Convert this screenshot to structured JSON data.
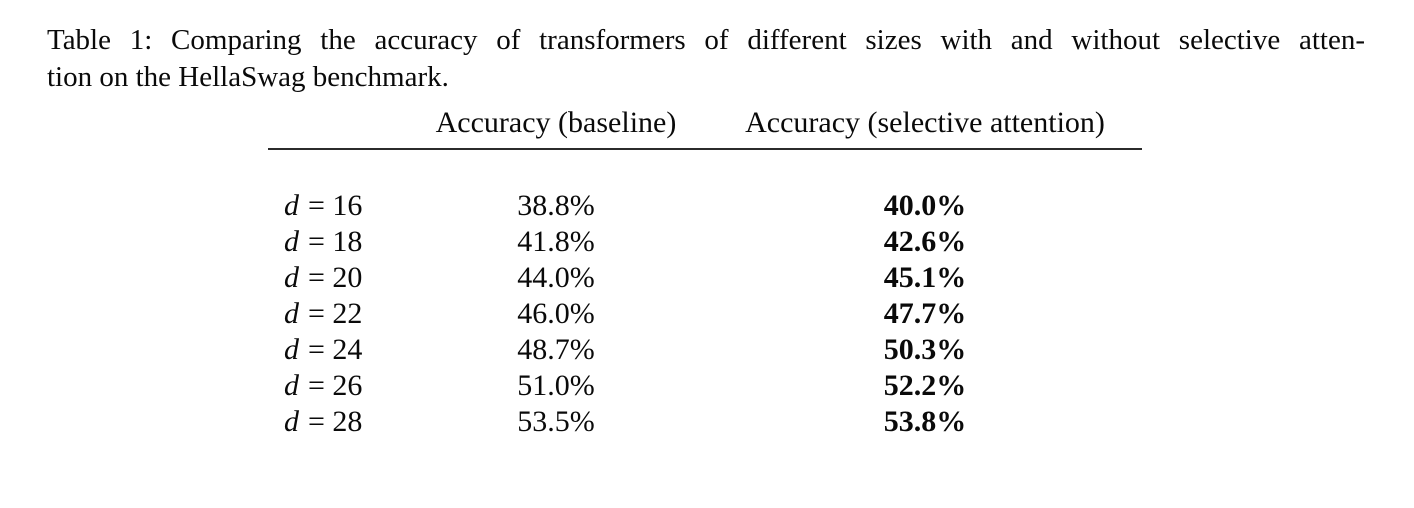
{
  "caption": {
    "line1": "Table 1: Comparing the accuracy of transformers of different sizes with and without selective atten-",
    "line2": "tion on the HellaSwag benchmark."
  },
  "table": {
    "headers": {
      "baseline": "Accuracy (baseline)",
      "selective": "Accuracy (selective attention)"
    },
    "rows": [
      {
        "symbol": "d",
        "rest": "= 16",
        "baseline": "38.8%",
        "selective": "40.0%"
      },
      {
        "symbol": "d",
        "rest": "= 18",
        "baseline": "41.8%",
        "selective": "42.6%"
      },
      {
        "symbol": "d",
        "rest": "= 20",
        "baseline": "44.0%",
        "selective": "45.1%"
      },
      {
        "symbol": "d",
        "rest": "= 22",
        "baseline": "46.0%",
        "selective": "47.7%"
      },
      {
        "symbol": "d",
        "rest": "= 24",
        "baseline": "48.7%",
        "selective": "50.3%"
      },
      {
        "symbol": "d",
        "rest": "= 26",
        "baseline": "51.0%",
        "selective": "52.2%"
      },
      {
        "symbol": "d",
        "rest": "= 28",
        "baseline": "53.5%",
        "selective": "53.8%"
      }
    ]
  },
  "colors": {
    "text": "#0a0a0a",
    "background": "#ffffff",
    "rule": "#2b2b2b"
  }
}
